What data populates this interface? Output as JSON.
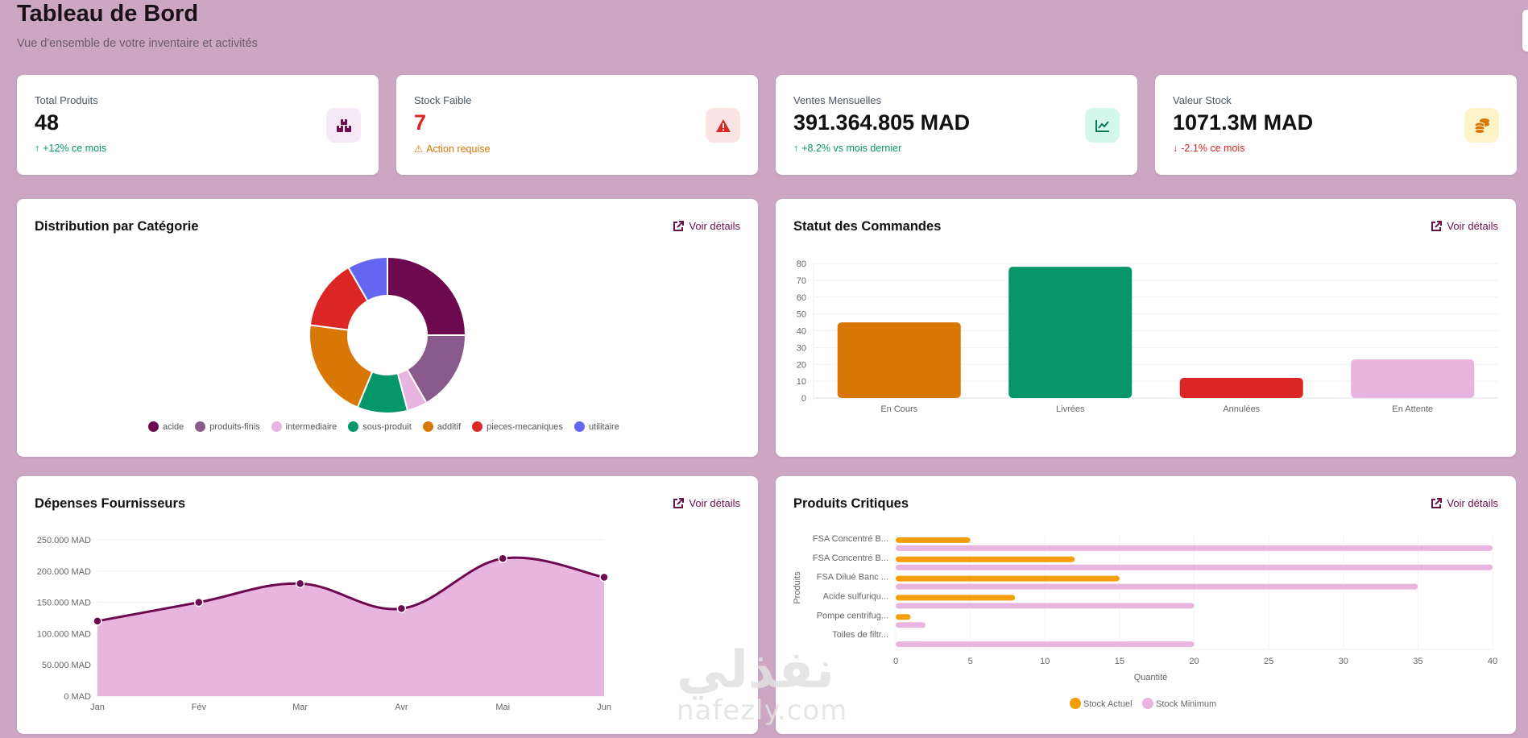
{
  "header": {
    "title": "Tableau de Bord",
    "subtitle": "Vue d'ensemble de votre inventaire et activités"
  },
  "stats": [
    {
      "label": "Total Produits",
      "value": "48",
      "trend_arrow": "↑",
      "trend": "+12% ce mois",
      "icon": "boxes-icon",
      "icon_color": "#6b0f4f",
      "icon_bg": "#f7e8f7",
      "value_color": "default",
      "trend_color": "green"
    },
    {
      "label": "Stock Faible",
      "value": "7",
      "trend_arrow": "⚠",
      "trend": "Action requise",
      "icon": "warning-icon",
      "icon_color": "#dc2626",
      "icon_bg": "#fde4e4",
      "value_color": "red",
      "trend_color": "orange"
    },
    {
      "label": "Ventes Mensuelles",
      "value": "391.364.805 MAD",
      "trend_arrow": "↑",
      "trend": "+8.2% vs mois dernier",
      "icon": "chart-line-icon",
      "icon_color": "#047857",
      "icon_bg": "#d5f8ec",
      "value_color": "default",
      "trend_color": "green"
    },
    {
      "label": "Valeur Stock",
      "value": "1071.3M MAD",
      "trend_arrow": "↓",
      "trend": "-2.1% ce mois",
      "icon": "coins-icon",
      "icon_color": "#d97706",
      "icon_bg": "#fdf3c8",
      "value_color": "default",
      "trend_color": "red"
    }
  ],
  "link_label": "Voir détails",
  "panels": {
    "categories": {
      "title": "Distribution par Catégorie"
    },
    "orders": {
      "title": "Statut des Commandes"
    },
    "expenses": {
      "title": "Dépenses Fournisseurs"
    },
    "critical": {
      "title": "Produits Critiques"
    }
  },
  "watermark": {
    "arabic": "نفذلي",
    "latin": "nafezly.com"
  },
  "chart_data": [
    {
      "id": "categories",
      "type": "pie",
      "title": "Distribution par Catégorie",
      "donut": true,
      "legend": "bottom",
      "categories": [
        "acide",
        "produits-finis",
        "intermediaire",
        "sous-produit",
        "additif",
        "pieces-mecaniques",
        "utilitaire"
      ],
      "values": [
        12,
        8,
        2,
        5,
        10,
        7,
        4
      ],
      "colors": [
        "#6d0a4f",
        "#8b5a8c",
        "#e8b4e0",
        "#059669",
        "#d97706",
        "#dc2626",
        "#6366f1"
      ]
    },
    {
      "id": "orders",
      "type": "bar",
      "title": "Statut des Commandes",
      "categories": [
        "En Cours",
        "Livrées",
        "Annulées",
        "En Attente"
      ],
      "values": [
        45,
        78,
        12,
        23
      ],
      "colors": [
        "#d97706",
        "#059669",
        "#dc2626",
        "#e8b4e0"
      ],
      "ylim": [
        0,
        80
      ],
      "yticks": [
        0,
        10,
        20,
        30,
        40,
        50,
        60,
        70,
        80
      ],
      "grid": true
    },
    {
      "id": "expenses",
      "type": "area",
      "title": "Dépenses Fournisseurs",
      "categories": [
        "Jan",
        "Fév",
        "Mar",
        "Avr",
        "Mai",
        "Jun"
      ],
      "values": [
        120000,
        150000,
        180000,
        140000,
        220000,
        190000
      ],
      "ylim": [
        0,
        250000
      ],
      "yticks": [
        0,
        50000,
        100000,
        150000,
        200000,
        250000
      ],
      "ytick_labels": [
        "0 MAD",
        "50.000 MAD",
        "100.000 MAD",
        "150.000 MAD",
        "200.000 MAD",
        "250.000 MAD"
      ],
      "line_color": "#6d0a4f",
      "fill_color": "#e8b4e0",
      "grid": true
    },
    {
      "id": "critical",
      "type": "bar",
      "orientation": "horizontal",
      "title": "Produits Critiques",
      "categories": [
        "FSA Concentré B...",
        "FSA Concentré B...",
        "FSA Dilué Banc ...",
        "Acide sulfuriqu...",
        "Pompe centrifug...",
        "Toiles de filtr..."
      ],
      "series": [
        {
          "name": "Stock Actuel",
          "values": [
            5,
            12,
            15,
            8,
            1,
            0
          ],
          "color": "#f59e0b"
        },
        {
          "name": "Stock Minimum",
          "values": [
            40,
            40,
            35,
            20,
            2,
            20
          ],
          "color": "#e8b4e0"
        }
      ],
      "xlim": [
        0,
        40
      ],
      "xticks": [
        0,
        5,
        10,
        15,
        20,
        25,
        30,
        35,
        40
      ],
      "xlabel": "Quantité",
      "ylabel": "Produits",
      "legend": "bottom",
      "grid": true
    }
  ]
}
